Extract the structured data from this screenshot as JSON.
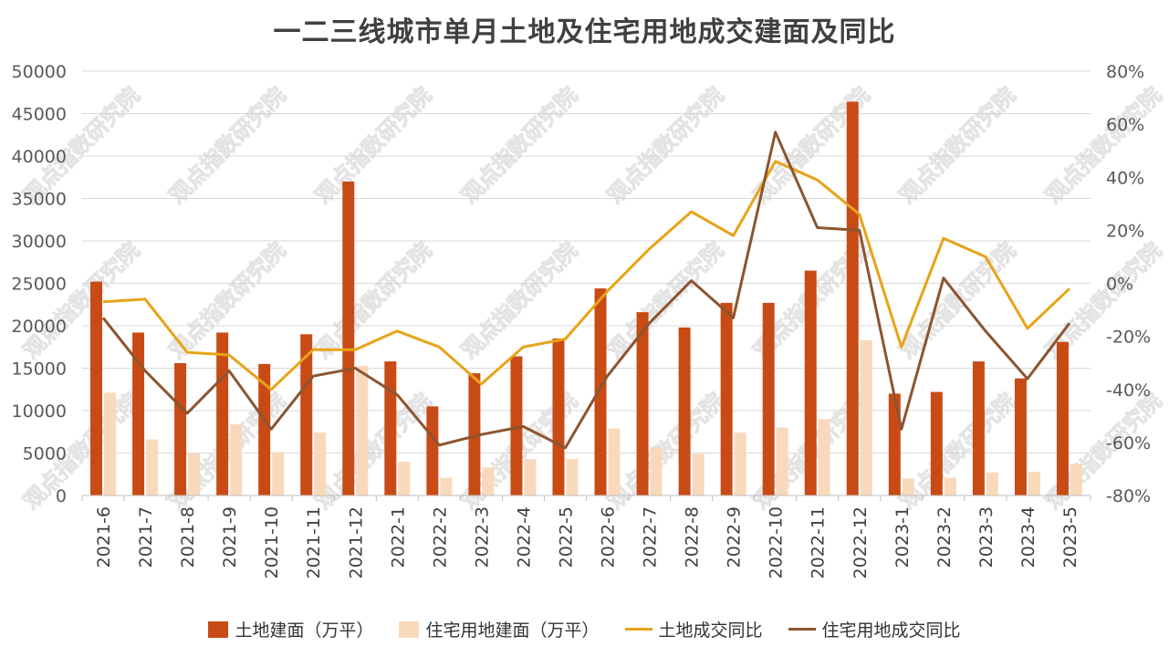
{
  "chart_data": {
    "type": "bar",
    "title": "一二三线城市单月土地及住宅用地成交建面及同比",
    "categories": [
      "2021-6",
      "2021-7",
      "2021-8",
      "2021-9",
      "2021-10",
      "2021-11",
      "2021-12",
      "2022-1",
      "2022-2",
      "2022-3",
      "2022-4",
      "2022-5",
      "2022-6",
      "2022-7",
      "2022-8",
      "2022-9",
      "2022-10",
      "2022-11",
      "2022-12",
      "2023-1",
      "2023-2",
      "2023-3",
      "2023-4",
      "2023-5"
    ],
    "y_left": {
      "min": 0,
      "max": 50000,
      "ticks": [
        "0",
        "5000",
        "10000",
        "15000",
        "20000",
        "25000",
        "30000",
        "35000",
        "40000",
        "45000",
        "50000"
      ]
    },
    "y_right": {
      "min": -80,
      "max": 80,
      "ticks": [
        "-80%",
        "-60%",
        "-40%",
        "-20%",
        "0%",
        "20%",
        "40%",
        "60%",
        "80%"
      ]
    },
    "series": [
      {
        "name": "土地建面（万平）",
        "kind": "bar",
        "axis": "left",
        "color": "#C84B16",
        "values": [
          25200,
          19200,
          15600,
          19200,
          15500,
          19000,
          37000,
          15800,
          10500,
          14400,
          16400,
          18500,
          24400,
          21600,
          19800,
          22700,
          22700,
          26500,
          46400,
          12000,
          12200,
          15800,
          13800,
          18100
        ]
      },
      {
        "name": "住宅用地建面（万平）",
        "kind": "bar",
        "axis": "left",
        "color": "#F9D9BC",
        "values": [
          12100,
          6600,
          5000,
          8400,
          5100,
          7400,
          15300,
          4000,
          2100,
          3300,
          4300,
          4300,
          7900,
          5700,
          4900,
          7400,
          8000,
          9000,
          18300,
          2000,
          2100,
          2700,
          2800,
          3700
        ]
      },
      {
        "name": "土地成交同比",
        "kind": "line",
        "axis": "right",
        "color": "#E8A317",
        "values": [
          -7,
          -6,
          -26,
          -27,
          -40,
          -25,
          -25,
          -18,
          -24,
          -38,
          -24,
          -21,
          -3,
          13,
          27,
          18,
          46,
          39,
          26,
          -24,
          17,
          10,
          -17,
          -2
        ]
      },
      {
        "name": "住宅用地成交同比",
        "kind": "line",
        "axis": "right",
        "color": "#8C5530",
        "values": [
          -13,
          -33,
          -49,
          -33,
          -55,
          -35,
          -32,
          -42,
          -61,
          -57,
          -54,
          -62,
          -35,
          -15,
          1,
          -13,
          57,
          21,
          20,
          -55,
          2,
          -18,
          -36,
          -15
        ]
      }
    ],
    "watermark": "观点指数研究院"
  }
}
